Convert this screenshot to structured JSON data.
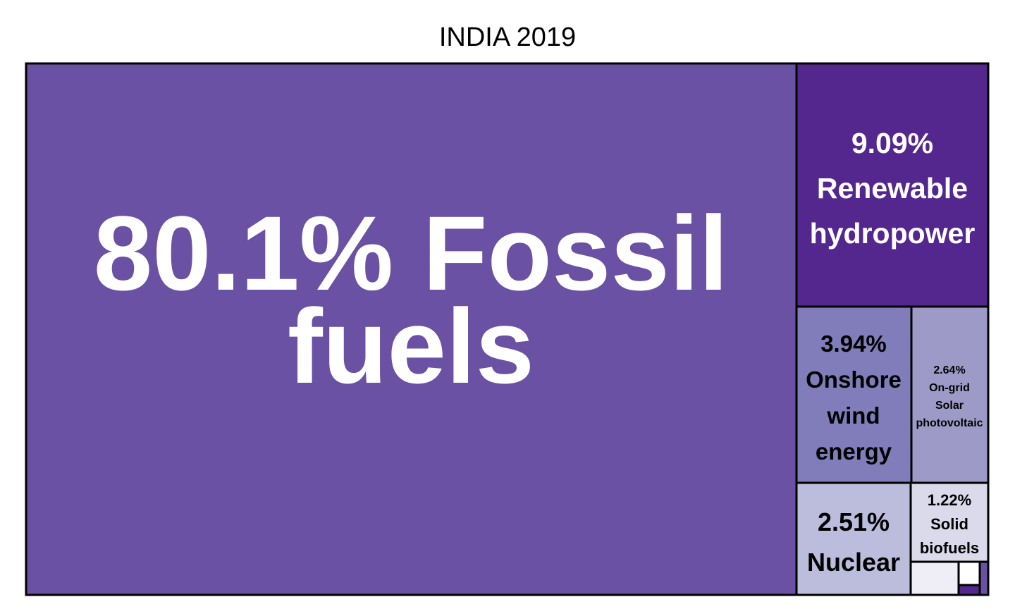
{
  "chart_data": {
    "type": "treemap",
    "title": "INDIA 2019",
    "items": [
      {
        "label": "Fossil fuels",
        "value": 80.1,
        "value_text": "80.1%",
        "color": "#6a51a3",
        "text_color": "#ffffff"
      },
      {
        "label": "Renewable hydropower",
        "value": 9.09,
        "value_text": "9.09%",
        "color": "#54278f",
        "text_color": "#ffffff"
      },
      {
        "label": "Onshore wind energy",
        "value": 3.94,
        "value_text": "3.94%",
        "color": "#807dba",
        "text_color": "#000000"
      },
      {
        "label": "On-grid Solar photovoltaic",
        "value": 2.64,
        "value_text": "2.64%",
        "color": "#9e9ac8",
        "text_color": "#000000"
      },
      {
        "label": "Nuclear",
        "value": 2.51,
        "value_text": "2.51%",
        "color": "#bcbddc",
        "text_color": "#000000"
      },
      {
        "label": "Solid biofuels",
        "value": 1.22,
        "value_text": "1.22%",
        "color": "#dadaeb",
        "text_color": "#000000"
      },
      {
        "label": "",
        "value": 0.3,
        "value_text": "",
        "color": "#efedf5",
        "text_color": "#000000"
      },
      {
        "label": "",
        "value": 0.1,
        "value_text": "",
        "color": "#ffffff",
        "text_color": "#000000"
      },
      {
        "label": "",
        "value": 0.05,
        "value_text": "",
        "color": "#6a51a3",
        "text_color": "#000000"
      },
      {
        "label": "",
        "value": 0.05,
        "value_text": "",
        "color": "#54278f",
        "text_color": "#000000"
      }
    ]
  }
}
